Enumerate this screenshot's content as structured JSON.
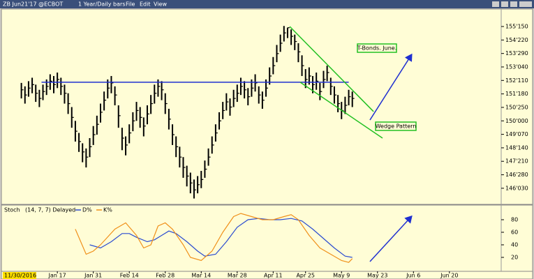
{
  "header": {
    "symbol": "ZB Jun21'17 @ECBOT",
    "period": "1 Year/Daily bars",
    "menu": [
      "File",
      "Edit",
      "View"
    ]
  },
  "date_cursor": "11/30/2016",
  "chart_data": [
    {
      "type": "ohlc",
      "title": "T-Bonds. June.",
      "annotation": "Wedge Pattern",
      "xlim": [
        -4,
        133
      ],
      "ylim": [
        145.2,
        156.48
      ],
      "color": "#000000",
      "yticks": [
        {
          "value": 155.46875,
          "label": "155'150"
        },
        {
          "value": 154.6875,
          "label": "154'220"
        },
        {
          "value": 153.90625,
          "label": "153'290"
        },
        {
          "value": 153.125,
          "label": "153'040"
        },
        {
          "value": 152.34375,
          "label": "152'110"
        },
        {
          "value": 151.5625,
          "label": "151'180"
        },
        {
          "value": 150.78125,
          "label": "150'250"
        },
        {
          "value": 150.0,
          "label": "150'000"
        },
        {
          "value": 149.21875,
          "label": "149'070"
        },
        {
          "value": 148.4375,
          "label": "148'140"
        },
        {
          "value": 147.65625,
          "label": "147'210"
        },
        {
          "value": 146.875,
          "label": "146'280"
        },
        {
          "value": 146.09375,
          "label": "146'030"
        }
      ],
      "close": [
        151.8,
        151.5,
        151.9,
        152.1,
        151.6,
        151.3,
        151.7,
        152.0,
        152.3,
        152.1,
        152.4,
        152.0,
        151.6,
        151.0,
        150.2,
        149.4,
        148.8,
        148.2,
        147.9,
        148.5,
        149.2,
        149.8,
        150.5,
        151.2,
        151.9,
        152.2,
        151.5,
        150.3,
        149.0,
        148.6,
        149.3,
        150.0,
        150.6,
        150.2,
        149.7,
        150.4,
        151.0,
        151.6,
        152.0,
        151.8,
        151.0,
        150.1,
        149.2,
        148.5,
        147.9,
        147.3,
        146.8,
        146.4,
        146.0,
        146.3,
        146.6,
        147.2,
        147.9,
        148.6,
        149.3,
        150.0,
        150.6,
        151.1,
        150.8,
        151.3,
        151.6,
        152.0,
        151.8,
        151.4,
        151.9,
        152.2,
        151.5,
        151.2,
        151.9,
        152.6,
        153.2,
        153.9,
        154.5,
        155.1,
        155.4,
        154.9,
        154.6,
        154.0,
        153.2,
        152.4,
        152.6,
        152.1,
        152.3,
        151.7,
        152.4,
        152.8,
        152.0,
        151.5,
        151.0,
        150.6,
        150.9,
        151.4,
        151.3
      ],
      "high": [
        152.2,
        152.0,
        152.3,
        152.5,
        152.1,
        151.8,
        152.1,
        152.4,
        152.7,
        152.6,
        152.8,
        152.5,
        152.1,
        151.6,
        150.8,
        150.0,
        149.3,
        148.7,
        148.4,
        149.0,
        149.7,
        150.3,
        151.0,
        151.7,
        152.4,
        152.6,
        152.0,
        150.9,
        149.6,
        149.1,
        149.8,
        150.5,
        151.1,
        150.8,
        150.2,
        150.9,
        151.5,
        152.1,
        152.4,
        152.3,
        151.6,
        150.7,
        149.8,
        149.1,
        148.5,
        147.9,
        147.4,
        147.0,
        146.6,
        146.8,
        147.1,
        147.7,
        148.4,
        149.1,
        149.8,
        150.5,
        151.1,
        151.6,
        151.3,
        151.8,
        152.1,
        152.5,
        152.3,
        151.9,
        152.4,
        152.7,
        152.0,
        151.7,
        152.4,
        153.1,
        153.7,
        154.4,
        155.0,
        155.5,
        155.4,
        155.3,
        155.0,
        154.5,
        153.8,
        153.0,
        153.1,
        152.6,
        152.8,
        152.2,
        152.9,
        153.2,
        152.5,
        152.0,
        151.5,
        151.1,
        151.4,
        151.8,
        151.7
      ],
      "low": [
        151.3,
        151.0,
        151.4,
        151.6,
        151.1,
        150.8,
        151.2,
        151.5,
        151.8,
        151.6,
        151.9,
        151.5,
        151.0,
        150.4,
        149.6,
        148.8,
        148.2,
        147.6,
        147.3,
        147.9,
        148.6,
        149.2,
        149.9,
        150.6,
        151.3,
        151.6,
        150.9,
        149.6,
        148.3,
        148.0,
        148.7,
        149.4,
        150.0,
        149.6,
        149.1,
        149.8,
        150.4,
        151.0,
        151.4,
        151.2,
        150.4,
        149.5,
        148.6,
        147.9,
        147.3,
        146.7,
        146.2,
        145.8,
        145.5,
        145.8,
        146.1,
        146.7,
        147.4,
        148.1,
        148.8,
        149.5,
        150.1,
        150.6,
        150.3,
        150.8,
        151.1,
        151.5,
        151.3,
        150.9,
        151.4,
        151.7,
        151.0,
        150.7,
        151.4,
        152.1,
        152.7,
        153.4,
        154.0,
        154.6,
        154.8,
        154.4,
        154.1,
        153.4,
        152.6,
        151.9,
        152.1,
        151.6,
        151.8,
        151.2,
        151.9,
        152.3,
        151.5,
        151.0,
        150.5,
        150.1,
        150.4,
        150.9,
        150.8
      ],
      "lines": [
        {
          "color": "#1f2fd0",
          "x": [
            5.6,
            91
          ],
          "y": [
            152.24,
            152.24
          ]
        },
        {
          "color": "#22c022",
          "x": [
            74.6,
            97.9
          ],
          "y": [
            155.47,
            150.54
          ]
        },
        {
          "color": "#22c022",
          "x": [
            77.5,
            100.4
          ],
          "y": [
            152.24,
            149.0
          ]
        },
        {
          "color": "#1f2fd0",
          "x": [
            96.9,
            108.5
          ],
          "y": [
            150.05,
            153.85
          ],
          "arrow": true
        }
      ]
    },
    {
      "type": "line",
      "title": "Stoch",
      "subtitle": "(14, 7, 7) Delayed",
      "xlim": [
        -4,
        133
      ],
      "ylim": [
        0,
        100
      ],
      "yticks": [
        20,
        40,
        60,
        80
      ],
      "xticks": [
        {
          "value": 10,
          "label": "Jan 17"
        },
        {
          "value": 20,
          "label": "Jan 31"
        },
        {
          "value": 30,
          "label": "Feb 14"
        },
        {
          "value": 40,
          "label": "Feb 28"
        },
        {
          "value": 50,
          "label": "Mar 14"
        },
        {
          "value": 60,
          "label": "Mar 28"
        },
        {
          "value": 70,
          "label": "Apr 11"
        },
        {
          "value": 79,
          "label": "Apr 25"
        },
        {
          "value": 89,
          "label": "May 9"
        },
        {
          "value": 99,
          "label": "May 23"
        },
        {
          "value": 109,
          "label": "Jun 6"
        },
        {
          "value": 119,
          "label": "Jun 20"
        }
      ],
      "series": [
        {
          "name": "D%",
          "color": "#2a4bd0",
          "x": [
            19,
            22,
            25,
            28,
            30,
            32,
            35,
            37,
            39,
            41,
            43,
            46,
            49,
            51,
            54,
            57,
            60,
            63,
            66,
            69,
            72,
            75,
            78,
            81,
            84,
            87,
            90,
            92
          ],
          "values": [
            40,
            35,
            45,
            58,
            58,
            52,
            45,
            48,
            55,
            62,
            58,
            45,
            30,
            22,
            25,
            45,
            68,
            80,
            82,
            80,
            80,
            82,
            78,
            65,
            50,
            35,
            22,
            20
          ]
        },
        {
          "name": "K%",
          "color": "#f0901a",
          "x": [
            15,
            18,
            20,
            22,
            26,
            29,
            32,
            34,
            36,
            38,
            40,
            42,
            45,
            47,
            50,
            53,
            56,
            59,
            61,
            64,
            67,
            70,
            73,
            75,
            77,
            80,
            83,
            86,
            89,
            91,
            92
          ],
          "values": [
            65,
            25,
            30,
            40,
            65,
            75,
            55,
            35,
            40,
            70,
            75,
            65,
            40,
            20,
            15,
            30,
            60,
            85,
            90,
            85,
            80,
            80,
            85,
            88,
            80,
            55,
            35,
            25,
            15,
            12,
            18
          ]
        }
      ],
      "lines": [
        {
          "color": "#1f2fd0",
          "x": [
            96.9,
            108.5
          ],
          "y": [
            13.3,
            85.6
          ],
          "arrow": true
        }
      ]
    }
  ]
}
